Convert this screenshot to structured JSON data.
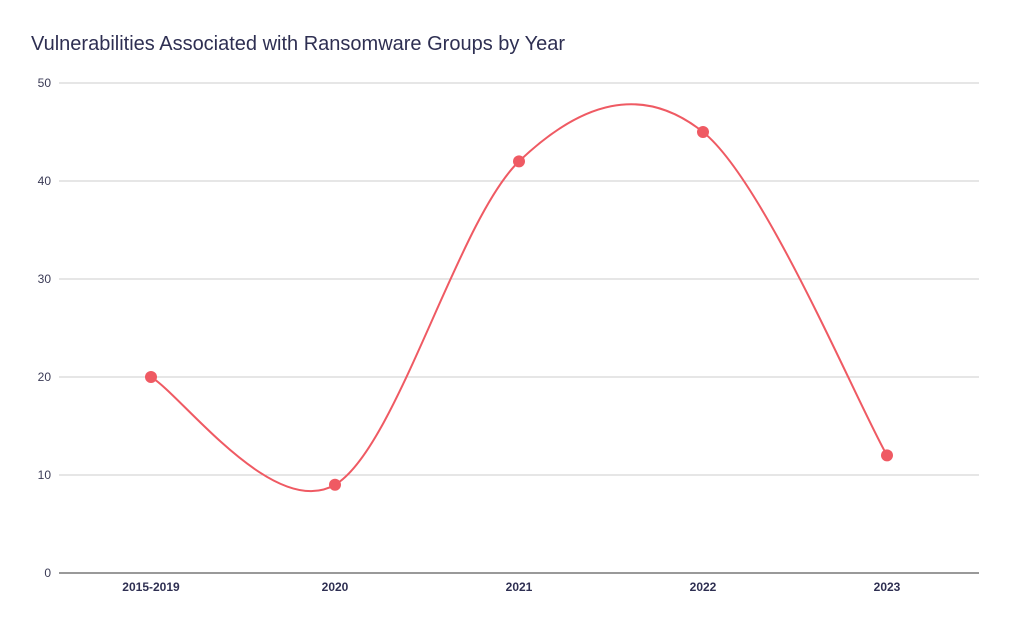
{
  "chart_data": {
    "type": "line",
    "title": "Vulnerabilities Associated with Ransomware Groups by Year",
    "xlabel": "",
    "ylabel": "",
    "categories": [
      "2015-2019",
      "2020",
      "2021",
      "2022",
      "2023"
    ],
    "series": [
      {
        "values": [
          20,
          9,
          42,
          45,
          12
        ],
        "color": "#ef5a63"
      }
    ],
    "ylim": [
      0,
      50
    ],
    "yticks": [
      0,
      10,
      20,
      30,
      40,
      50
    ],
    "grid": true,
    "smooth": true,
    "markers": true
  }
}
